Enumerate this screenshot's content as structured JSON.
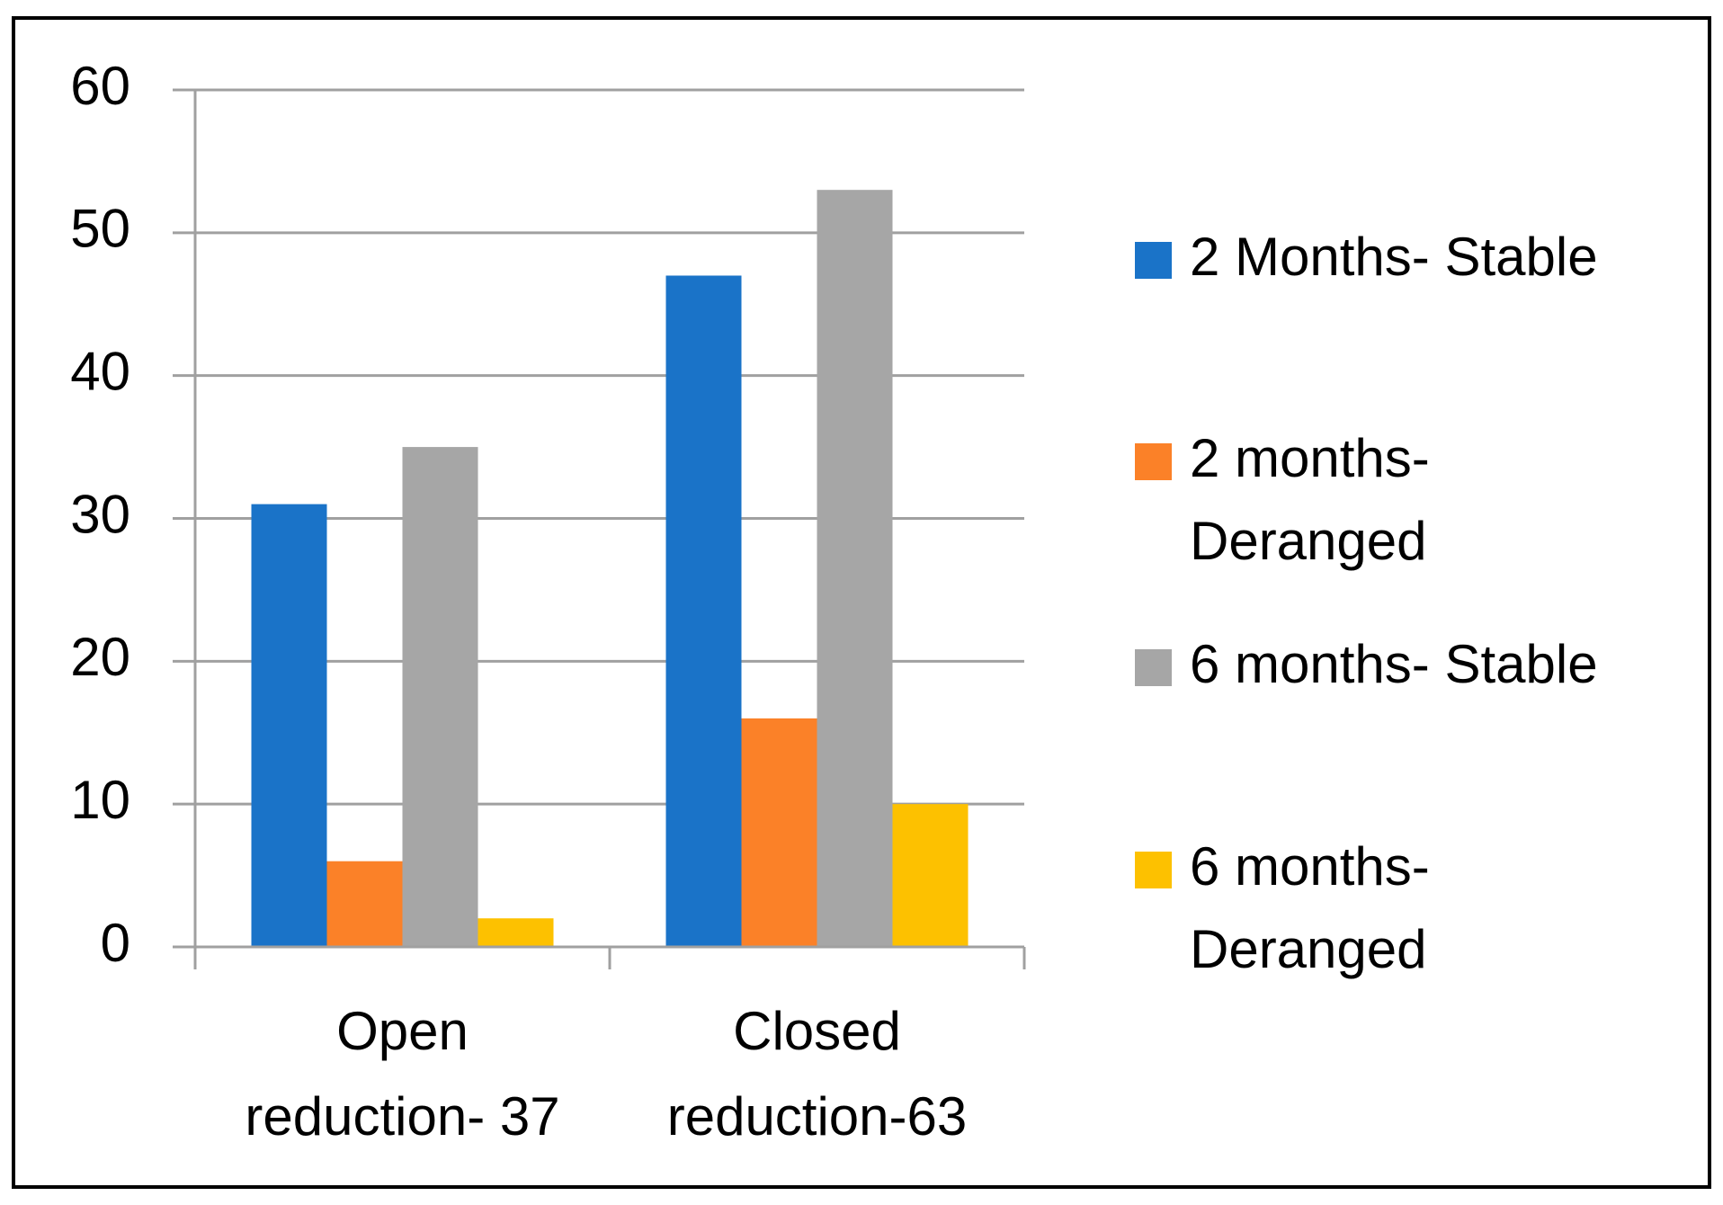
{
  "chart_data": {
    "type": "bar",
    "categories": [
      "Open reduction- 37",
      "Closed reduction-63"
    ],
    "series": [
      {
        "name": "2 Months- Stable",
        "color": "#1a73c8",
        "values": [
          31,
          47
        ]
      },
      {
        "name": "2 months- Deranged",
        "color": "#fb8128",
        "values": [
          6,
          16
        ]
      },
      {
        "name": "6 months- Stable",
        "color": "#a6a6a6",
        "values": [
          35,
          53
        ]
      },
      {
        "name": "6 months- Deranged",
        "color": "#fdc100",
        "values": [
          2,
          10
        ]
      }
    ],
    "ylim": [
      0,
      60
    ],
    "yticks": [
      0,
      10,
      20,
      30,
      40,
      50,
      60
    ],
    "grid": true,
    "legend": "right"
  }
}
